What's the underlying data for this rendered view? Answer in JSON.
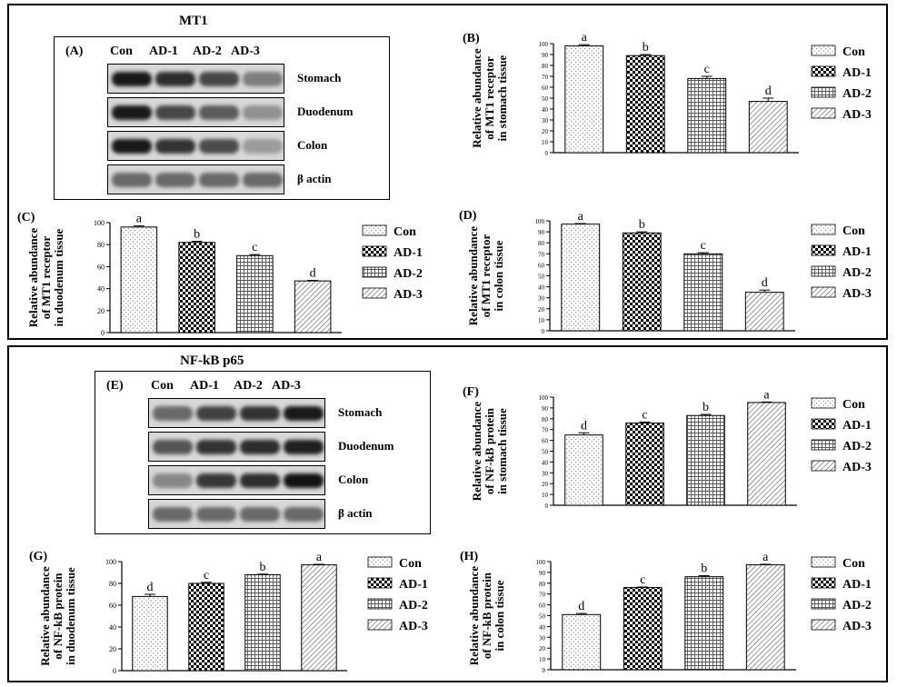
{
  "section1": {
    "title": "MT1"
  },
  "section2": {
    "title": "NF-kB p65"
  },
  "colors": {
    "bar_fill": "#ffffff",
    "bar_stroke": "#000000",
    "blot_bg": "#d8d8d8",
    "band_dark": "#1a1a1a"
  },
  "blot_A": {
    "label": "(A)",
    "lanes": [
      "Con",
      "AD-1",
      "AD-2",
      "AD-3"
    ],
    "rows": [
      {
        "label": "Stomach",
        "intensity": [
          0.95,
          0.85,
          0.72,
          0.45
        ]
      },
      {
        "label": "Duodenum",
        "intensity": [
          0.95,
          0.72,
          0.62,
          0.35
        ]
      },
      {
        "label": "Colon",
        "intensity": [
          0.95,
          0.82,
          0.7,
          0.3
        ]
      },
      {
        "label": "β actin",
        "intensity": [
          0.55,
          0.55,
          0.55,
          0.55
        ]
      }
    ]
  },
  "blot_E": {
    "label": "(E)",
    "lanes": [
      "Con",
      "AD-1",
      "AD-2",
      "AD-3"
    ],
    "rows": [
      {
        "label": "Stomach",
        "intensity": [
          0.55,
          0.75,
          0.82,
          0.95
        ]
      },
      {
        "label": "Duodenum",
        "intensity": [
          0.65,
          0.82,
          0.85,
          0.92
        ]
      },
      {
        "label": "Colon",
        "intensity": [
          0.4,
          0.8,
          0.85,
          0.98
        ]
      },
      {
        "label": "β actin",
        "intensity": [
          0.55,
          0.55,
          0.55,
          0.55
        ]
      }
    ]
  },
  "chart_data": [
    {
      "panel": "(B)",
      "type": "bar",
      "ylabel": [
        "Relative abundance",
        "of MT1 receptor",
        "in stomach tissue"
      ],
      "categories": [
        "Con",
        "AD-1",
        "AD-2",
        "AD-3"
      ],
      "values": [
        98,
        89,
        68,
        47
      ],
      "errors": [
        1,
        1,
        2,
        3
      ],
      "letters": [
        "a",
        "b",
        "c",
        "d"
      ],
      "ylim": [
        0,
        100
      ],
      "yticks": [
        0,
        10,
        20,
        30,
        40,
        50,
        60,
        70,
        80,
        90,
        100
      ],
      "legend": [
        "Con",
        "AD-1",
        "AD-2",
        "AD-3"
      ]
    },
    {
      "panel": "(C)",
      "type": "bar",
      "ylabel": [
        "Relative abundance",
        "of MT1 receptor",
        "in duodenum tissue"
      ],
      "categories": [
        "Con",
        "AD-1",
        "AD-2",
        "AD-3"
      ],
      "values": [
        96,
        82,
        70,
        47
      ],
      "errors": [
        1,
        1,
        1,
        0.5
      ],
      "letters": [
        "a",
        "b",
        "c",
        "d"
      ],
      "ylim": [
        0,
        100
      ],
      "yticks": [
        0,
        20,
        40,
        60,
        80,
        100
      ],
      "legend": [
        "Con",
        "AD-1",
        "AD-2",
        "AD-3"
      ]
    },
    {
      "panel": "(D)",
      "type": "bar",
      "ylabel": [
        "Relative abundance",
        "of MT1 receptor",
        "in colon tissue"
      ],
      "categories": [
        "Con",
        "AD-1",
        "AD-2",
        "AD-3"
      ],
      "values": [
        97,
        89,
        70,
        35
      ],
      "errors": [
        0.5,
        1,
        1,
        2
      ],
      "letters": [
        "a",
        "b",
        "c",
        "d"
      ],
      "ylim": [
        0,
        100
      ],
      "yticks": [
        0,
        10,
        20,
        30,
        40,
        50,
        60,
        70,
        80,
        90,
        100
      ],
      "legend": [
        "Con",
        "AD-1",
        "AD-2",
        "AD-3"
      ]
    },
    {
      "panel": "(F)",
      "type": "bar",
      "ylabel": [
        "Relative abundance",
        "of NF-kB protein",
        "in stomach tissue"
      ],
      "categories": [
        "Con",
        "AD-1",
        "AD-2",
        "AD-3"
      ],
      "values": [
        65,
        76,
        83,
        95
      ],
      "errors": [
        2,
        1,
        1,
        0.5
      ],
      "letters": [
        "d",
        "c",
        "b",
        "a"
      ],
      "ylim": [
        0,
        100
      ],
      "yticks": [
        0,
        10,
        20,
        30,
        40,
        50,
        60,
        70,
        80,
        90,
        100
      ],
      "legend": [
        "Con",
        "AD-1",
        "AD-2",
        "AD-3"
      ]
    },
    {
      "panel": "(G)",
      "type": "bar",
      "ylabel": [
        "Relative abundance",
        "of NF-kB protein",
        "in duodenum tissue"
      ],
      "categories": [
        "Con",
        "AD-1",
        "AD-2",
        "AD-3"
      ],
      "values": [
        68,
        80,
        88,
        97
      ],
      "errors": [
        2,
        1,
        0.5,
        0.5
      ],
      "letters": [
        "d",
        "c",
        "b",
        "a"
      ],
      "ylim": [
        0,
        100
      ],
      "yticks": [
        0,
        20,
        40,
        60,
        80,
        100
      ],
      "legend": [
        "Con",
        "AD-1",
        "AD-2",
        "AD-3"
      ]
    },
    {
      "panel": "(H)",
      "type": "bar",
      "ylabel": [
        "Relative abundance",
        "of NF-kB protein",
        "in colon tissue"
      ],
      "categories": [
        "Con",
        "AD-1",
        "AD-2",
        "AD-3"
      ],
      "values": [
        51,
        76,
        86,
        97
      ],
      "errors": [
        1,
        0.5,
        1,
        0.5
      ],
      "letters": [
        "d",
        "c",
        "b",
        "a"
      ],
      "ylim": [
        0,
        100
      ],
      "yticks": [
        0,
        10,
        20,
        30,
        40,
        50,
        60,
        70,
        80,
        90,
        100
      ],
      "legend": [
        "Con",
        "AD-1",
        "AD-2",
        "AD-3"
      ]
    }
  ]
}
